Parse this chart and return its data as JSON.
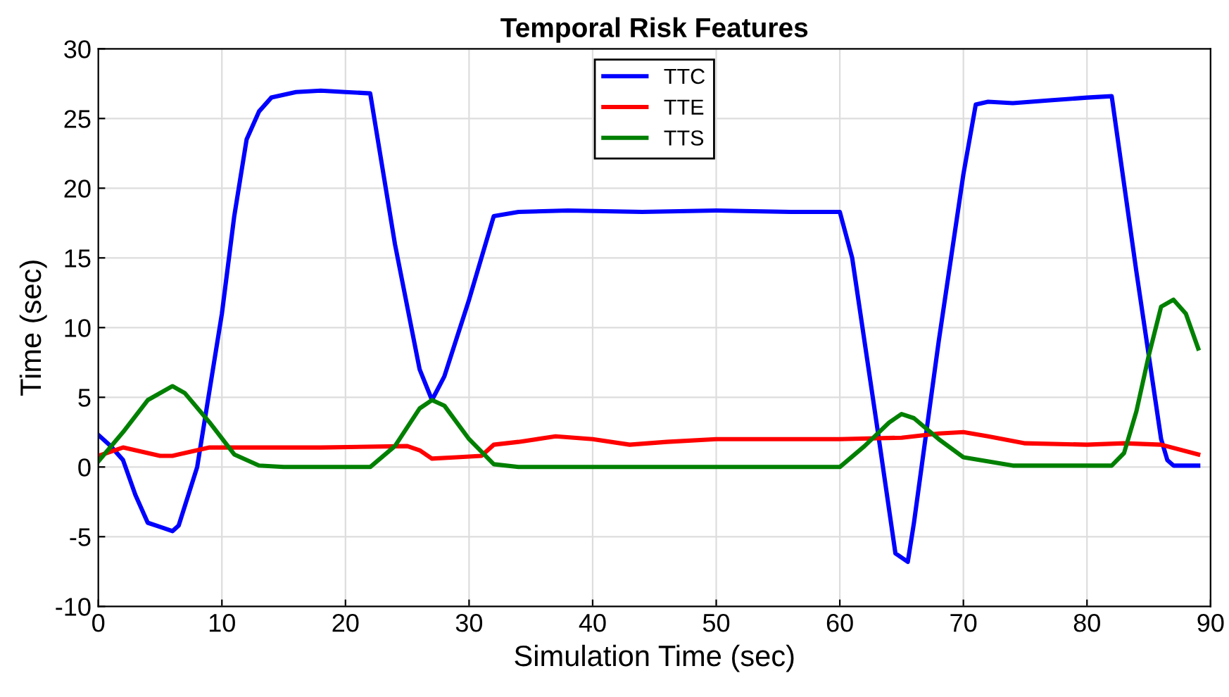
{
  "chart_data": {
    "type": "line",
    "title": "Temporal Risk Features",
    "xlabel": "Simulation Time (sec)",
    "ylabel": "Time (sec)",
    "xlim": [
      0,
      90
    ],
    "ylim": [
      -10,
      30
    ],
    "xticks": [
      0,
      10,
      20,
      30,
      40,
      50,
      60,
      70,
      80,
      90
    ],
    "yticks": [
      -10,
      -5,
      0,
      5,
      10,
      15,
      20,
      25,
      30
    ],
    "grid": true,
    "legend": "top",
    "marker": "none",
    "line_style": "solid",
    "series": [
      {
        "name": "TTC",
        "color": "#0000ff",
        "x": [
          0,
          1,
          2,
          3,
          4,
          5,
          6,
          6.5,
          8,
          10,
          11,
          12,
          13,
          14,
          16,
          18,
          20,
          22,
          24,
          26,
          27,
          28,
          30,
          32,
          34,
          38,
          44,
          50,
          56,
          60,
          61,
          63,
          64.5,
          65.5,
          66,
          68,
          70,
          71,
          72,
          74,
          77,
          80,
          82,
          84,
          86,
          86.5,
          87,
          89
        ],
        "values": [
          2.3,
          1.5,
          0.5,
          -2,
          -4,
          -4.3,
          -4.6,
          -4.2,
          0,
          11,
          18,
          23.5,
          25.5,
          26.5,
          26.9,
          27,
          26.9,
          26.8,
          16,
          7,
          4.8,
          6.5,
          12,
          18,
          18.3,
          18.4,
          18.3,
          18.4,
          18.3,
          18.3,
          15,
          3,
          -6.2,
          -6.8,
          -4,
          9,
          21,
          26,
          26.2,
          26.1,
          26.3,
          26.5,
          26.6,
          14,
          2,
          0.5,
          0.1,
          0.1
        ]
      },
      {
        "name": "TTE",
        "color": "#ff0000",
        "x": [
          0,
          2,
          3,
          5,
          6,
          8,
          9,
          12,
          18,
          25,
          26,
          27,
          29,
          31,
          32,
          34,
          37,
          40,
          43,
          46,
          50,
          60,
          65,
          68,
          70,
          72,
          75,
          80,
          83,
          86,
          89
        ],
        "values": [
          0.8,
          1.4,
          1.2,
          0.8,
          0.8,
          1.2,
          1.4,
          1.4,
          1.4,
          1.5,
          1.2,
          0.6,
          0.7,
          0.8,
          1.6,
          1.8,
          2.2,
          2,
          1.6,
          1.8,
          2.0,
          2.0,
          2.1,
          2.4,
          2.5,
          2.2,
          1.7,
          1.6,
          1.7,
          1.6,
          0.9
        ]
      },
      {
        "name": "TTS",
        "color": "#008000",
        "x": [
          0,
          2,
          4,
          6,
          7,
          9,
          11,
          13,
          15,
          22,
          24,
          26,
          27,
          28,
          30,
          32,
          34,
          60,
          62,
          64,
          65,
          66,
          68,
          70,
          74,
          82,
          83,
          84,
          85,
          86,
          87,
          88,
          89
        ],
        "values": [
          0.4,
          2.5,
          4.8,
          5.8,
          5.3,
          3.2,
          0.9,
          0.1,
          0,
          0,
          1.5,
          4.2,
          4.8,
          4.4,
          2,
          0.2,
          0,
          0,
          1.5,
          3.2,
          3.8,
          3.5,
          2,
          0.7,
          0.1,
          0.1,
          1,
          4,
          8,
          11.5,
          12,
          11,
          8.5
        ]
      }
    ]
  }
}
